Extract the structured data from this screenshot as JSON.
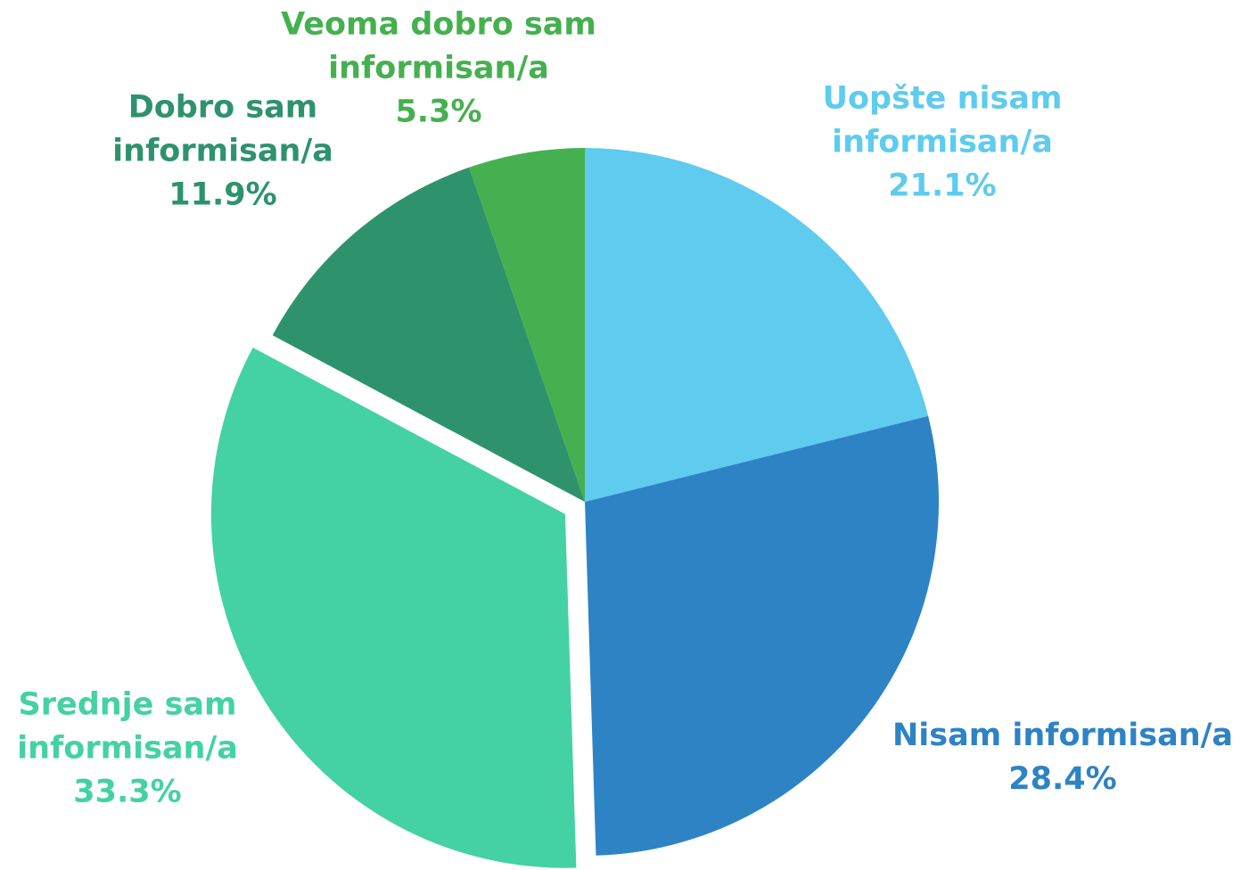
{
  "chart_data": {
    "type": "pie",
    "categories": [
      "Uopšte nisam informisan/a",
      "Nisam informisan/a",
      "Srednje sam informisan/a",
      "Dobro sam informisan/a",
      "Veoma dobro sam informisan/a"
    ],
    "values": [
      21.1,
      28.4,
      33.3,
      11.9,
      5.3
    ],
    "value_labels": [
      "21.1%",
      "28.4%",
      "33.3%",
      "11.9%",
      "5.3%"
    ],
    "colors": [
      "#5ecbef",
      "#2e83c4",
      "#44d1a3",
      "#2e936d",
      "#45b04f"
    ],
    "exploded": [
      false,
      false,
      true,
      false,
      false
    ]
  }
}
